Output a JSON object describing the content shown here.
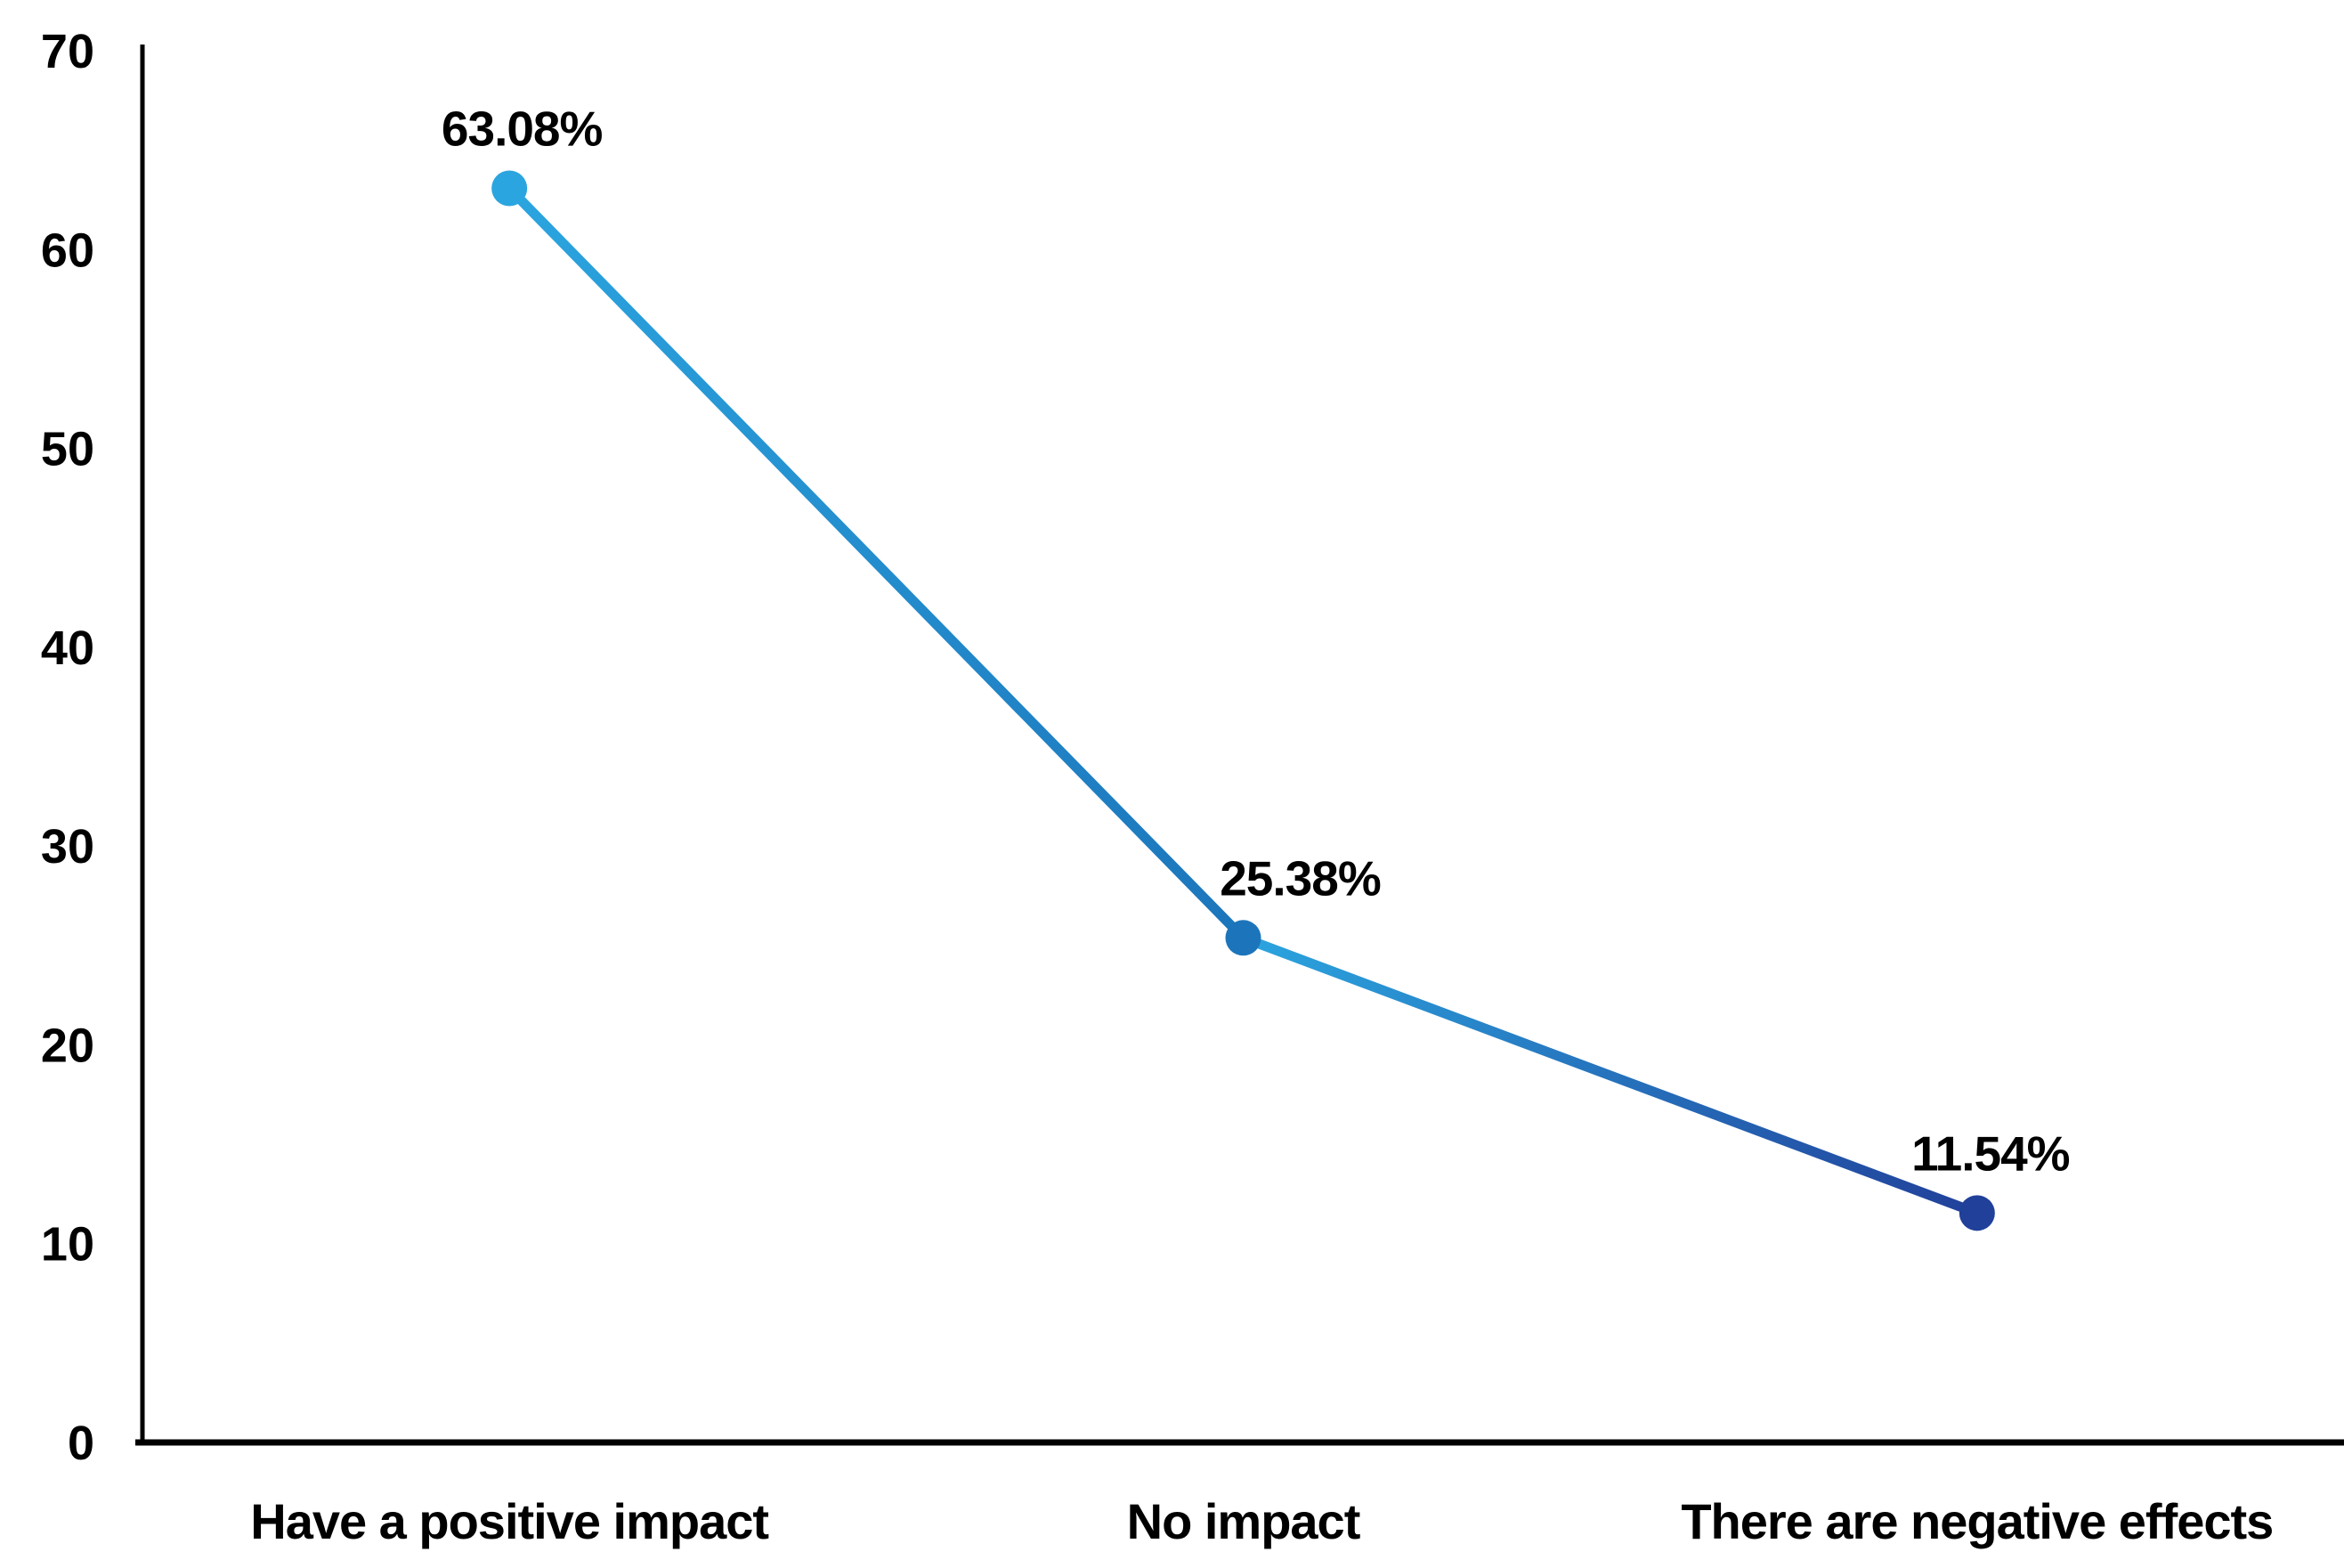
{
  "chart_data": {
    "type": "line",
    "title": "",
    "xlabel": "",
    "ylabel": "",
    "categories": [
      "Have a positive impact",
      "No impact",
      "There are negative effects"
    ],
    "values": [
      63.08,
      25.38,
      11.54
    ],
    "point_labels": [
      "63.08%",
      "25.38%",
      "11.54%"
    ],
    "y_ticks": [
      "0",
      "10",
      "20",
      "30",
      "40",
      "50",
      "60",
      "70"
    ],
    "ylim": [
      0,
      70
    ],
    "grid": false,
    "legend_position": "none",
    "axis_color": "#000000",
    "text_color": "#000000",
    "background_color": "#FFFFFF",
    "marker_colors": [
      "#2BA5DF",
      "#1C75BB",
      "#21409A"
    ],
    "segment_gradients": [
      {
        "from": "#2BA5DF",
        "to": "#1C75BB"
      },
      {
        "from": "#2BA5DF",
        "to": "#21409A"
      }
    ]
  }
}
